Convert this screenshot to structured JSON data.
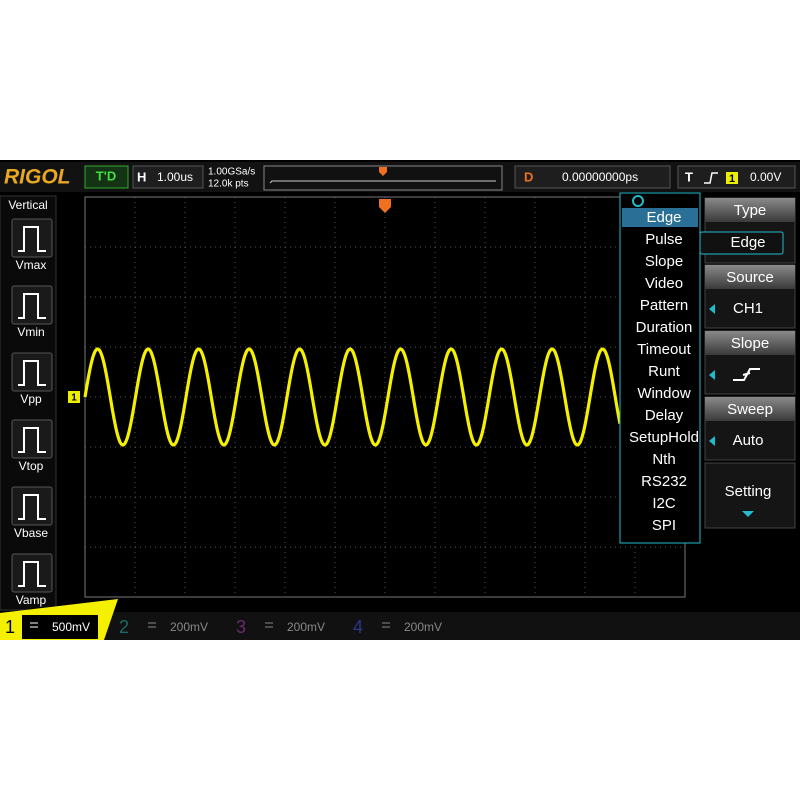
{
  "top_bar": {
    "brand": "RIGOL",
    "run_status": "T'D",
    "horizontal_label": "H",
    "timebase": "1.00us",
    "sample_rate": "1.00GSa/s",
    "memory_depth": "12.0k pts",
    "delay_label": "D",
    "delay": "0.00000000ps",
    "trigger_label": "T",
    "trigger_channel": "1",
    "trigger_level": "0.00V"
  },
  "left_menu": {
    "title": "Vertical",
    "items": [
      "Vmax",
      "Vmin",
      "Vpp",
      "Vtop",
      "Vbase",
      "Vamp"
    ]
  },
  "channel_marker": "1",
  "trigger_type_list": {
    "items": [
      "Edge",
      "Pulse",
      "Slope",
      "Video",
      "Pattern",
      "Duration",
      "Timeout",
      "Runt",
      "Window",
      "Delay",
      "SetupHold",
      "Nth",
      "RS232",
      "I2C",
      "SPI"
    ]
  },
  "right_menu": {
    "items": [
      {
        "label": "Type",
        "value": "Edge"
      },
      {
        "label": "Source",
        "value": "CH1"
      },
      {
        "label": "Slope"
      },
      {
        "label": "Sweep",
        "value": "Auto"
      },
      {
        "label": "Setting"
      }
    ]
  },
  "channels": [
    {
      "number": "1",
      "scale": "500mV"
    },
    {
      "number": "2",
      "scale": "200mV"
    },
    {
      "number": "3",
      "scale": "200mV"
    },
    {
      "number": "4",
      "scale": "200mV"
    }
  ]
}
